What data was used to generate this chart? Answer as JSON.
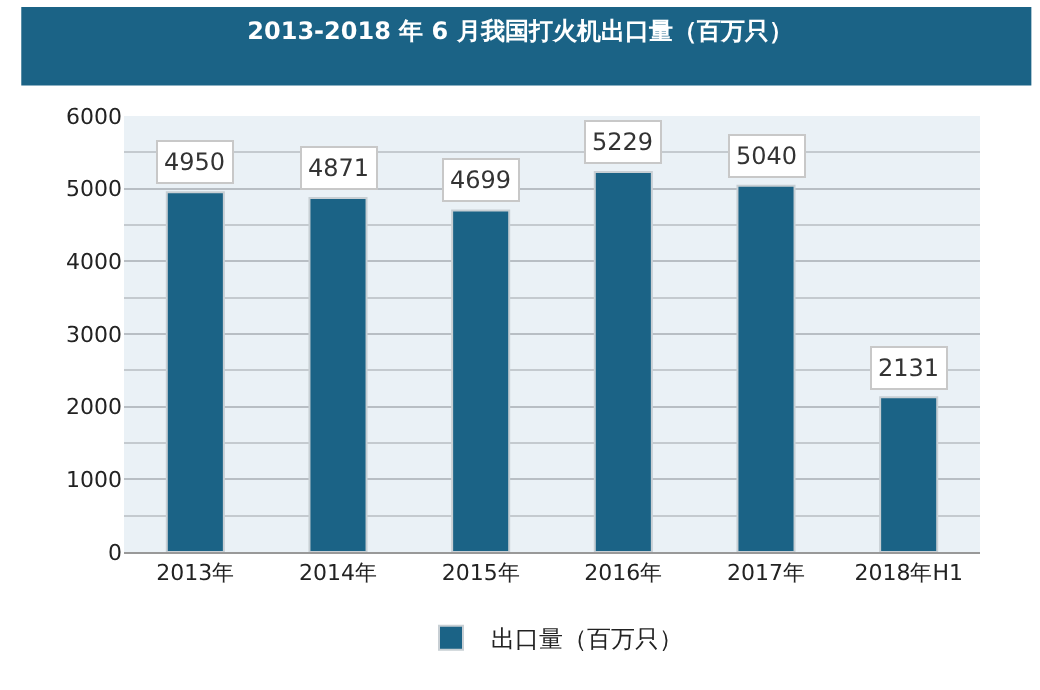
{
  "chart_data": {
    "type": "bar",
    "title": "2013-2018 年 6 月我国打火机出口量（百万只）",
    "categories": [
      "2013年",
      "2014年",
      "2015年",
      "2016年",
      "2017年",
      "2018年H1"
    ],
    "series": [
      {
        "name": "出口量（百万只）",
        "color": "#1b6386",
        "values": [
          4950,
          4871,
          4699,
          5229,
          5040,
          2131
        ]
      }
    ],
    "ylim": [
      0,
      6000
    ],
    "yticks": [
      0,
      1000,
      2000,
      3000,
      4000,
      5000,
      6000
    ],
    "grid": "y",
    "legend": "bottom",
    "data_labels": true
  }
}
